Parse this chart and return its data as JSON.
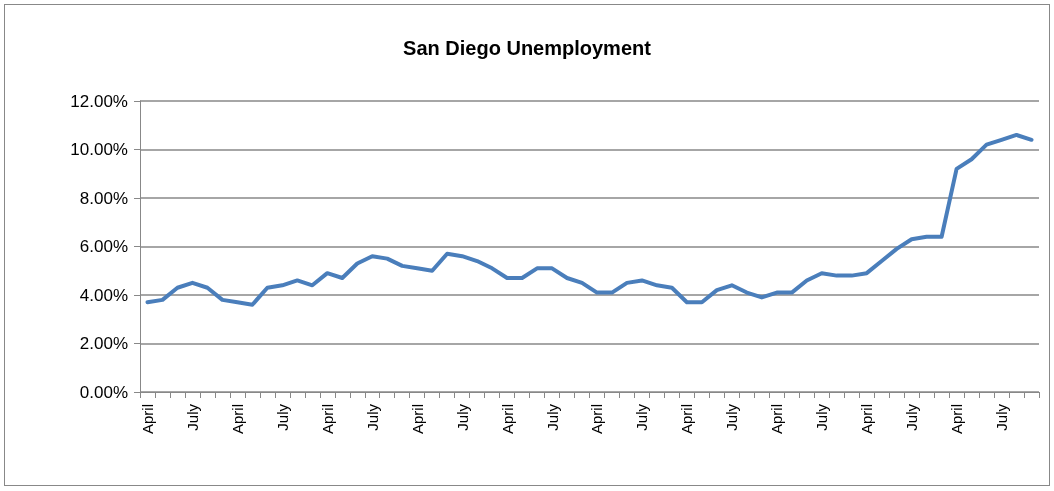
{
  "chart_data": {
    "type": "line",
    "title": "San Diego Unemployment",
    "categories": [
      "April",
      null,
      null,
      "July",
      null,
      null,
      "April",
      null,
      null,
      "July",
      null,
      null,
      "April",
      null,
      null,
      "July",
      null,
      null,
      "April",
      null,
      null,
      "July",
      null,
      null,
      "April",
      null,
      null,
      "July",
      null,
      null,
      "April",
      null,
      null,
      "July",
      null,
      null,
      "April",
      null,
      null,
      "July",
      null,
      null,
      "April",
      null,
      null,
      "July",
      null,
      null,
      "April",
      null,
      null,
      "July",
      null,
      null,
      "April",
      null,
      null,
      "July",
      null,
      null
    ],
    "series": [
      {
        "color": "#4a7ebb",
        "values": [
          3.7,
          3.8,
          4.3,
          4.5,
          4.3,
          3.8,
          3.7,
          3.6,
          4.3,
          4.4,
          4.6,
          4.4,
          4.9,
          4.7,
          5.3,
          5.6,
          5.5,
          5.2,
          5.1,
          5.0,
          5.7,
          5.6,
          5.4,
          5.1,
          4.7,
          4.7,
          5.1,
          5.1,
          4.7,
          4.5,
          4.1,
          4.1,
          4.5,
          4.6,
          4.4,
          4.3,
          3.7,
          3.7,
          4.2,
          4.4,
          4.1,
          3.9,
          4.1,
          4.1,
          4.6,
          4.9,
          4.8,
          4.8,
          4.9,
          5.4,
          5.9,
          6.3,
          6.4,
          6.4,
          9.2,
          9.6,
          10.2,
          10.4,
          10.6,
          10.4
        ]
      }
    ],
    "ylim": [
      0,
      12
    ],
    "yticks": [
      {
        "value": 0,
        "label": "0.00%"
      },
      {
        "value": 2,
        "label": "2.00%"
      },
      {
        "value": 4,
        "label": "4.00%"
      },
      {
        "value": 6,
        "label": "6.00%"
      },
      {
        "value": 8,
        "label": "8.00%"
      },
      {
        "value": 10,
        "label": "10.00%"
      },
      {
        "value": 12,
        "label": "12.00%"
      }
    ],
    "grid": "y",
    "marker": "none",
    "line_style": "solid"
  }
}
